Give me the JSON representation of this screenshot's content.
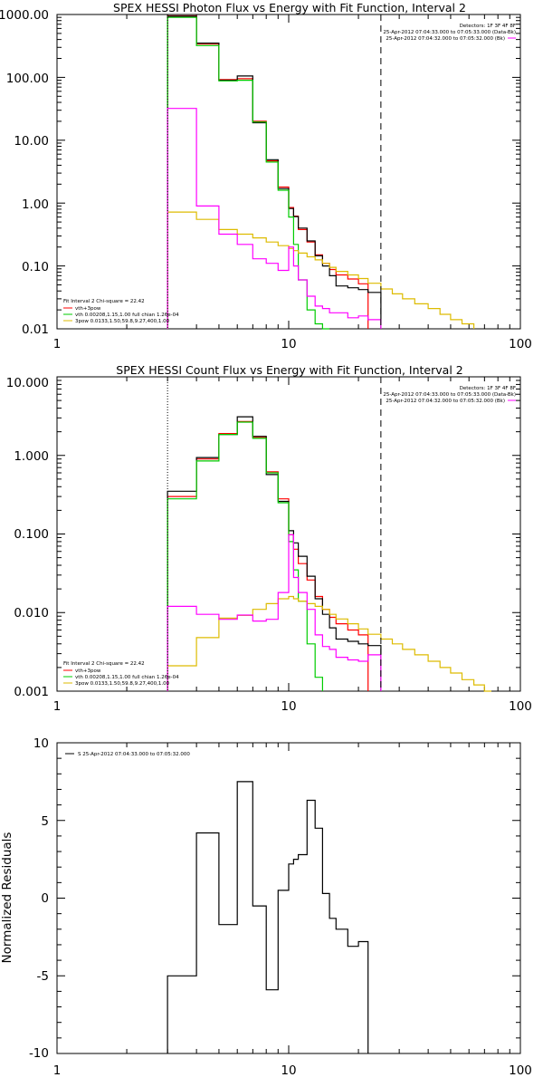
{
  "chart_data": [
    {
      "type": "line",
      "title": "SPEX HESSI Photon Flux vs Energy with Fit Function, Interval 2",
      "xscale": "log",
      "yscale": "log",
      "xlim": [
        1,
        100
      ],
      "ylim": [
        0.01,
        1000
      ],
      "x_tick_labels": [
        "1",
        "10",
        "100"
      ],
      "y_tick_labels": [
        "1000.00",
        "100.00",
        "10.00",
        "1.00",
        "0.10",
        "0.01"
      ],
      "vlines": [
        {
          "x": 3,
          "style": "dotted",
          "color": "#000000"
        },
        {
          "x": 25,
          "style": "dashed",
          "color": "#000000"
        }
      ],
      "legend_topright": {
        "position": "top-right",
        "lines": [
          {
            "text": "Detectors: 1F 3F 4F 8F",
            "color": "#000000"
          },
          {
            "text": "25-Apr-2012 07:04:33.000 to 07:05:33.000 (Data-Bk)",
            "color": "#000000"
          },
          {
            "text": "25-Apr-2012 07:04:32.000 to 07:05:32.000 (Bk)",
            "color": "#ff00ff"
          }
        ]
      },
      "legend_bottomleft": {
        "position": "bottom-left",
        "lines": [
          {
            "text": "Fit Interval  2    Chi-square = 22.42",
            "color": "#000000"
          },
          {
            "text": "vth+3pow",
            "color": "#ff0000"
          },
          {
            "text": "vth 0.00208,1.15,1.00   full chian 1.26e-04",
            "color": "#00cc00"
          },
          {
            "text": "3pow 0.0133,1.50,59.8,9.27,400,1.00",
            "color": "#ddbb00"
          }
        ]
      },
      "edges": [
        3,
        4,
        5,
        6,
        7,
        8,
        9,
        10,
        10.5,
        11,
        12,
        13,
        14,
        15,
        16,
        18,
        20,
        22,
        25,
        28,
        31,
        35,
        40,
        45,
        50,
        56,
        63
      ],
      "series": [
        {
          "color": "#ff0000",
          "values": [
            950,
            340,
            92,
            95,
            20,
            4.7,
            1.8,
            0.85,
            0.62,
            0.38,
            0.24,
            0.15,
            0.11,
            0.088,
            0.072,
            0.062,
            0.052
          ]
        },
        {
          "color": "#000000",
          "values": [
            940,
            350,
            90,
            105,
            19,
            4.9,
            1.7,
            0.82,
            0.61,
            0.4,
            0.25,
            0.145,
            0.1,
            0.07,
            0.048,
            0.045,
            0.042,
            0.038
          ]
        },
        {
          "color": "#00cc00",
          "values": [
            900,
            320,
            88,
            90,
            19.5,
            4.5,
            1.6,
            0.6,
            0.22,
            0.06,
            0.02,
            0.012,
            0.009
          ]
        },
        {
          "color": "#ddbb00",
          "values": [
            0.72,
            0.55,
            0.38,
            0.32,
            0.28,
            0.24,
            0.21,
            0.19,
            0.175,
            0.16,
            0.14,
            0.125,
            0.11,
            0.095,
            0.082,
            0.072,
            0.063,
            0.053,
            0.043,
            0.036,
            0.03,
            0.025,
            0.021,
            0.017,
            0.014,
            0.012
          ]
        },
        {
          "color": "#ff00ff",
          "values": [
            32,
            0.9,
            0.32,
            0.22,
            0.13,
            0.11,
            0.085,
            0.2,
            0.1,
            0.06,
            0.033,
            0.023,
            0.021,
            0.018,
            0.018,
            0.015,
            0.016,
            0.014
          ]
        }
      ]
    },
    {
      "type": "line",
      "title": "SPEX HESSI Count Flux vs Energy with Fit Function, Interval 2",
      "xscale": "log",
      "yscale": "log",
      "xlim": [
        1,
        100
      ],
      "ylim": [
        0.001,
        10
      ],
      "x_tick_labels": [
        "1",
        "10",
        "100"
      ],
      "y_tick_labels": [
        "10.000",
        "1.000",
        "0.100",
        "0.010",
        "0.001"
      ],
      "vlines": [
        {
          "x": 3,
          "style": "dotted",
          "color": "#000000"
        },
        {
          "x": 25,
          "style": "dashed",
          "color": "#000000"
        }
      ],
      "legend_topright": {
        "position": "top-right",
        "lines": [
          {
            "text": "Detectors: 1F 3F 4F 8F",
            "color": "#000000"
          },
          {
            "text": "25-Apr-2012 07:04:33.000 to 07:05:33.000 (Data-Bk)",
            "color": "#000000"
          },
          {
            "text": "25-Apr-2012 07:04:32.000 to 07:05:32.000 (Bk)",
            "color": "#ff00ff"
          }
        ]
      },
      "legend_bottomleft": {
        "position": "bottom-left",
        "lines": [
          {
            "text": "Fit Interval  2    Chi-square = 22.42",
            "color": "#000000"
          },
          {
            "text": "vth+3pow",
            "color": "#ff0000"
          },
          {
            "text": "vth 0.00208,1.15,1.00   full chian 1.26e-04",
            "color": "#00cc00"
          },
          {
            "text": "3pow 0.0133,1.50,59.8,9.27,400,1.00",
            "color": "#ddbb00"
          }
        ]
      },
      "edges": [
        3,
        4,
        5,
        6,
        7,
        8,
        9,
        10,
        10.5,
        11,
        12,
        13,
        14,
        15,
        16,
        18,
        20,
        22,
        25,
        28,
        31,
        35,
        40,
        45,
        50,
        56,
        63,
        70,
        75
      ],
      "series": [
        {
          "color": "#ff0000",
          "values": [
            0.3,
            0.9,
            1.9,
            2.7,
            1.7,
            0.62,
            0.28,
            0.098,
            0.064,
            0.042,
            0.026,
            0.016,
            0.011,
            0.0087,
            0.0072,
            0.006,
            0.0052
          ]
        },
        {
          "color": "#000000",
          "values": [
            0.35,
            0.94,
            1.85,
            3.1,
            1.75,
            0.57,
            0.26,
            0.11,
            0.077,
            0.052,
            0.029,
            0.015,
            0.0095,
            0.0064,
            0.0046,
            0.0043,
            0.004,
            0.0038
          ]
        },
        {
          "color": "#00cc00",
          "values": [
            0.28,
            0.85,
            1.85,
            2.65,
            1.65,
            0.6,
            0.25,
            0.08,
            0.035,
            0.014,
            0.004,
            0.0015
          ]
        },
        {
          "color": "#ddbb00",
          "values": [
            0.0021,
            0.0048,
            0.0085,
            0.0092,
            0.011,
            0.013,
            0.015,
            0.016,
            0.015,
            0.014,
            0.013,
            0.012,
            0.011,
            0.0095,
            0.0083,
            0.0072,
            0.0062,
            0.0053,
            0.0046,
            0.004,
            0.0034,
            0.0029,
            0.0024,
            0.002,
            0.0017,
            0.0014,
            0.0012,
            0.001
          ]
        },
        {
          "color": "#ff00ff",
          "values": [
            0.012,
            0.0095,
            0.0082,
            0.0093,
            0.0078,
            0.0082,
            0.018,
            0.098,
            0.028,
            0.018,
            0.011,
            0.0052,
            0.0037,
            0.0034,
            0.0027,
            0.0025,
            0.0024,
            0.0029
          ]
        }
      ]
    },
    {
      "type": "line",
      "title": "",
      "xscale": "log",
      "yscale": "linear",
      "xlim": [
        1,
        100
      ],
      "ylim": [
        -10,
        10
      ],
      "ylabel": "Normalized Residuals",
      "x_tick_labels": [
        "1",
        "10",
        "100"
      ],
      "y_tick_labels": [
        "10",
        "5",
        "0",
        "-5",
        "-10"
      ],
      "y_ticks": [
        10,
        5,
        0,
        -5,
        -10
      ],
      "legend": {
        "position": "top-left",
        "lines": [
          {
            "text": "S  25-Apr-2012 07:04:33.000 to 07:05:32.000",
            "color": "#000000"
          }
        ]
      },
      "edges": [
        3,
        4,
        5,
        6,
        7,
        8,
        9,
        10,
        10.5,
        11,
        12,
        13,
        14,
        15,
        16,
        18,
        20,
        22,
        25
      ],
      "series": [
        {
          "color": "#000000",
          "values": [
            -5,
            4.2,
            -1.7,
            7.5,
            -0.5,
            -5.9,
            0.5,
            2.2,
            2.5,
            2.8,
            6.3,
            4.5,
            0.3,
            -1.3,
            -2,
            -3.1,
            -2.8
          ]
        }
      ]
    }
  ]
}
